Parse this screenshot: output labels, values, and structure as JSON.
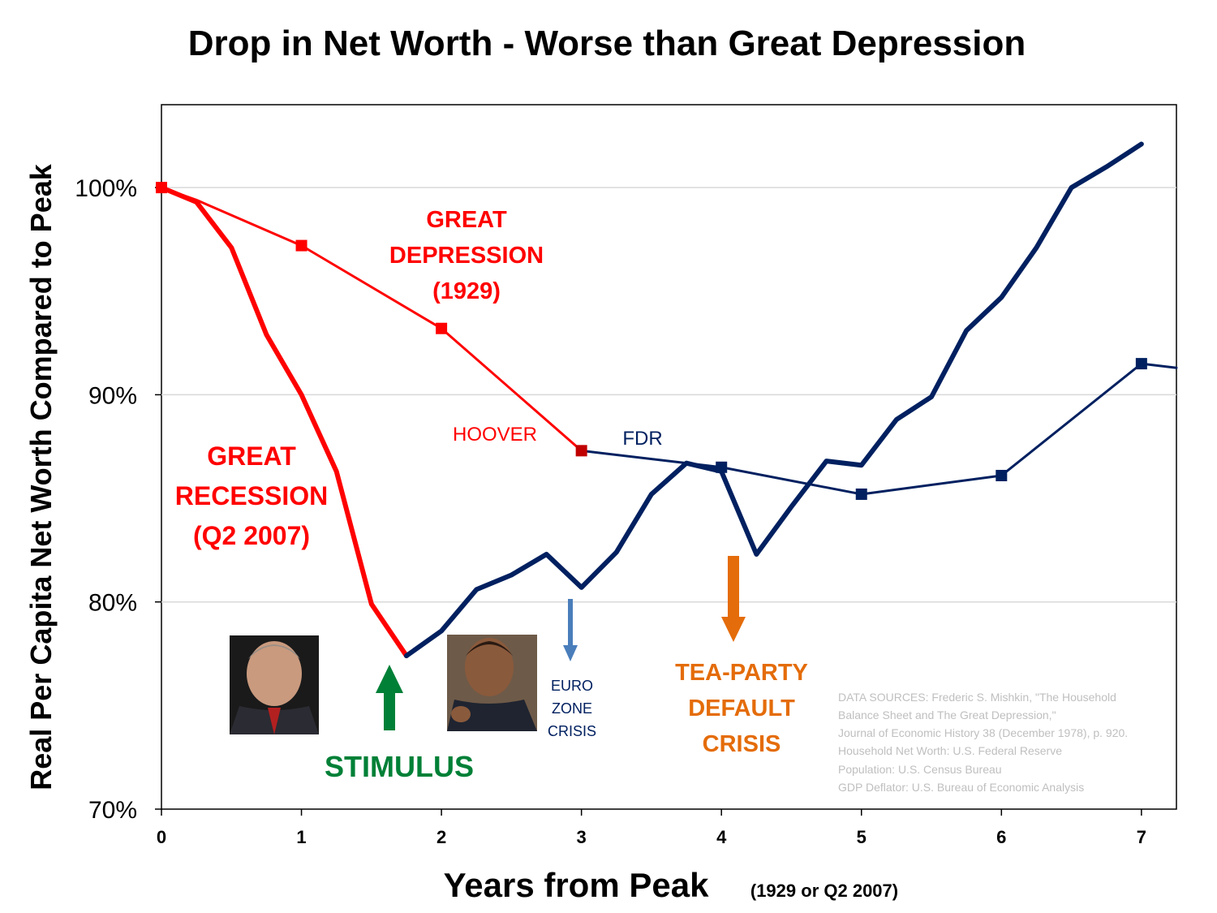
{
  "chart_data": {
    "type": "line",
    "title": "Drop in Net Worth - Worse than Great Depression",
    "xlabel": "Years from Peak",
    "xlabel_note": "(1929 or Q2 2007)",
    "ylabel": "Real Per Capita Net Worth Compared to Peak",
    "xlim": [
      0,
      7.25
    ],
    "ylim": [
      70,
      104
    ],
    "x_ticks": [
      0,
      1,
      2,
      3,
      4,
      5,
      6,
      7
    ],
    "y_ticks": [
      70,
      80,
      90,
      100
    ],
    "y_tick_labels": [
      "70%",
      "80%",
      "90%",
      "100%"
    ],
    "grid": "horizontal",
    "series": [
      {
        "id": "great-depression",
        "color": "#ff0000",
        "color_later": "#002060",
        "switch_x": 3,
        "x": [
          0,
          0.25,
          1,
          2,
          3,
          4,
          5,
          6,
          7,
          7.25
        ],
        "y": [
          100,
          99.4,
          97.2,
          93.2,
          87.3,
          86.5,
          85.2,
          86.1,
          91.5,
          91.3
        ],
        "markers_at": [
          0,
          1,
          2,
          3,
          4,
          5,
          6,
          7
        ]
      },
      {
        "id": "great-recession",
        "color": "#ff0000",
        "color_later": "#002060",
        "switch_x": 1.75,
        "x": [
          0,
          0.25,
          0.5,
          0.75,
          1,
          1.25,
          1.5,
          1.75,
          2,
          2.25,
          2.5,
          2.75,
          3,
          3.25,
          3.5,
          3.75,
          4,
          4.25,
          4.5,
          4.75,
          5,
          5.25,
          5.5,
          5.75,
          6,
          6.25,
          6.5,
          6.75,
          7
        ],
        "y": [
          100,
          99.3,
          97.1,
          92.9,
          90.0,
          86.3,
          79.9,
          77.4,
          78.6,
          80.6,
          81.3,
          82.3,
          80.7,
          82.4,
          85.2,
          86.7,
          86.3,
          82.3,
          84.6,
          86.8,
          86.6,
          88.8,
          89.9,
          93.1,
          94.7,
          97.1,
          100.0,
          101.0,
          102.1
        ]
      }
    ],
    "annotations": {
      "great_depression": [
        "GREAT",
        "DEPRESSION",
        "(1929)"
      ],
      "great_recession": [
        "GREAT",
        "RECESSION",
        "(Q2 2007)"
      ],
      "hoover": "HOOVER",
      "fdr": "FDR",
      "stimulus": "STIMULUS",
      "euro_zone": [
        "EURO",
        "ZONE",
        "CRISIS"
      ],
      "tea_party": [
        "TEA-PARTY",
        "DEFAULT",
        "CRISIS"
      ],
      "sources": [
        "DATA SOURCES: Frederic S. Mishkin, \"The Household",
        "Balance Sheet and The Great Depression,\"",
        "Journal of Economic History 38 (December 1978), p. 920.",
        "Household Net Worth: U.S. Federal Reserve",
        "Population: U.S. Census Bureau",
        "GDP Deflator: U.S. Bureau of Economic Analysis"
      ]
    },
    "colors": {
      "red": "#ff0000",
      "navy": "#002060",
      "green": "#008037",
      "orange": "#e46c0a",
      "blue_arrow": "#4a7ebb",
      "grid": "#d9d9d9",
      "sources_text": "#bfbfbf"
    }
  }
}
